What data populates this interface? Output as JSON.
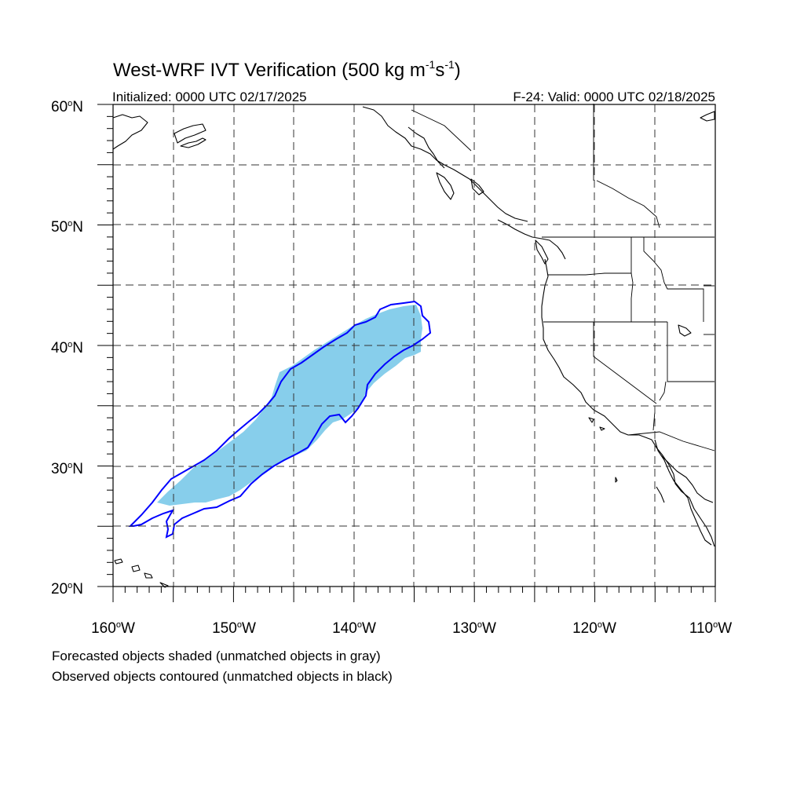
{
  "figure": {
    "title_main": "West-WRF IVT Verification (500 kg m",
    "title_unit_exp1": "-1",
    "title_unit_s": "s",
    "title_unit_exp2": "-1",
    "title_close": ")",
    "initialized": "Initialized: 0000 UTC 02/17/2025",
    "valid": "F-24: Valid: 0000 UTC 02/18/2025"
  },
  "axes": {
    "lat_labels": [
      {
        "deg": "60",
        "suffix": "N",
        "value": 60
      },
      {
        "deg": "50",
        "suffix": "N",
        "value": 50
      },
      {
        "deg": "40",
        "suffix": "N",
        "value": 40
      },
      {
        "deg": "30",
        "suffix": "N",
        "value": 30
      },
      {
        "deg": "20",
        "suffix": "N",
        "value": 20
      }
    ],
    "lon_labels": [
      {
        "deg": "160",
        "suffix": "W",
        "value": -160
      },
      {
        "deg": "150",
        "suffix": "W",
        "value": -150
      },
      {
        "deg": "140",
        "suffix": "W",
        "value": -140
      },
      {
        "deg": "130",
        "suffix": "W",
        "value": -130
      },
      {
        "deg": "120",
        "suffix": "W",
        "value": -120
      },
      {
        "deg": "110",
        "suffix": "W",
        "value": -110
      }
    ],
    "lon_range": [
      -160,
      -110
    ],
    "lat_range": [
      20,
      60
    ],
    "grid": "dashed, every 5 degrees"
  },
  "legend": {
    "line1": "Forecasted objects shaded (unmatched objects in gray)",
    "line2": "Observed objects contoured (unmatched objects in black)"
  },
  "colors": {
    "forecast_fill": "#87ceeb",
    "observed_contour": "#0000ff",
    "coastline": "#000000",
    "grid": "#000000"
  }
}
